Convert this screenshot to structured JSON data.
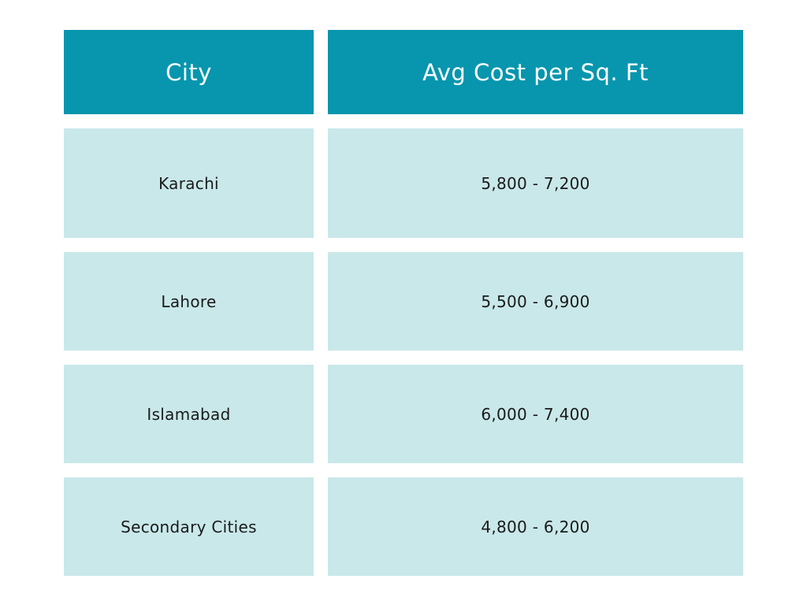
{
  "table": {
    "headers": {
      "city": "City",
      "cost": "Avg Cost per Sq. Ft"
    },
    "rows": [
      {
        "city": "Karachi",
        "cost": "5,800 - 7,200"
      },
      {
        "city": "Lahore",
        "cost": "5,500 - 6,900"
      },
      {
        "city": "Islamabad",
        "cost": "6,000 - 7,400"
      },
      {
        "city": "Secondary Cities",
        "cost": "4,800 - 6,200"
      }
    ]
  },
  "colors": {
    "header_bg": "#0796AE",
    "row_bg": "#C9E8EA"
  }
}
